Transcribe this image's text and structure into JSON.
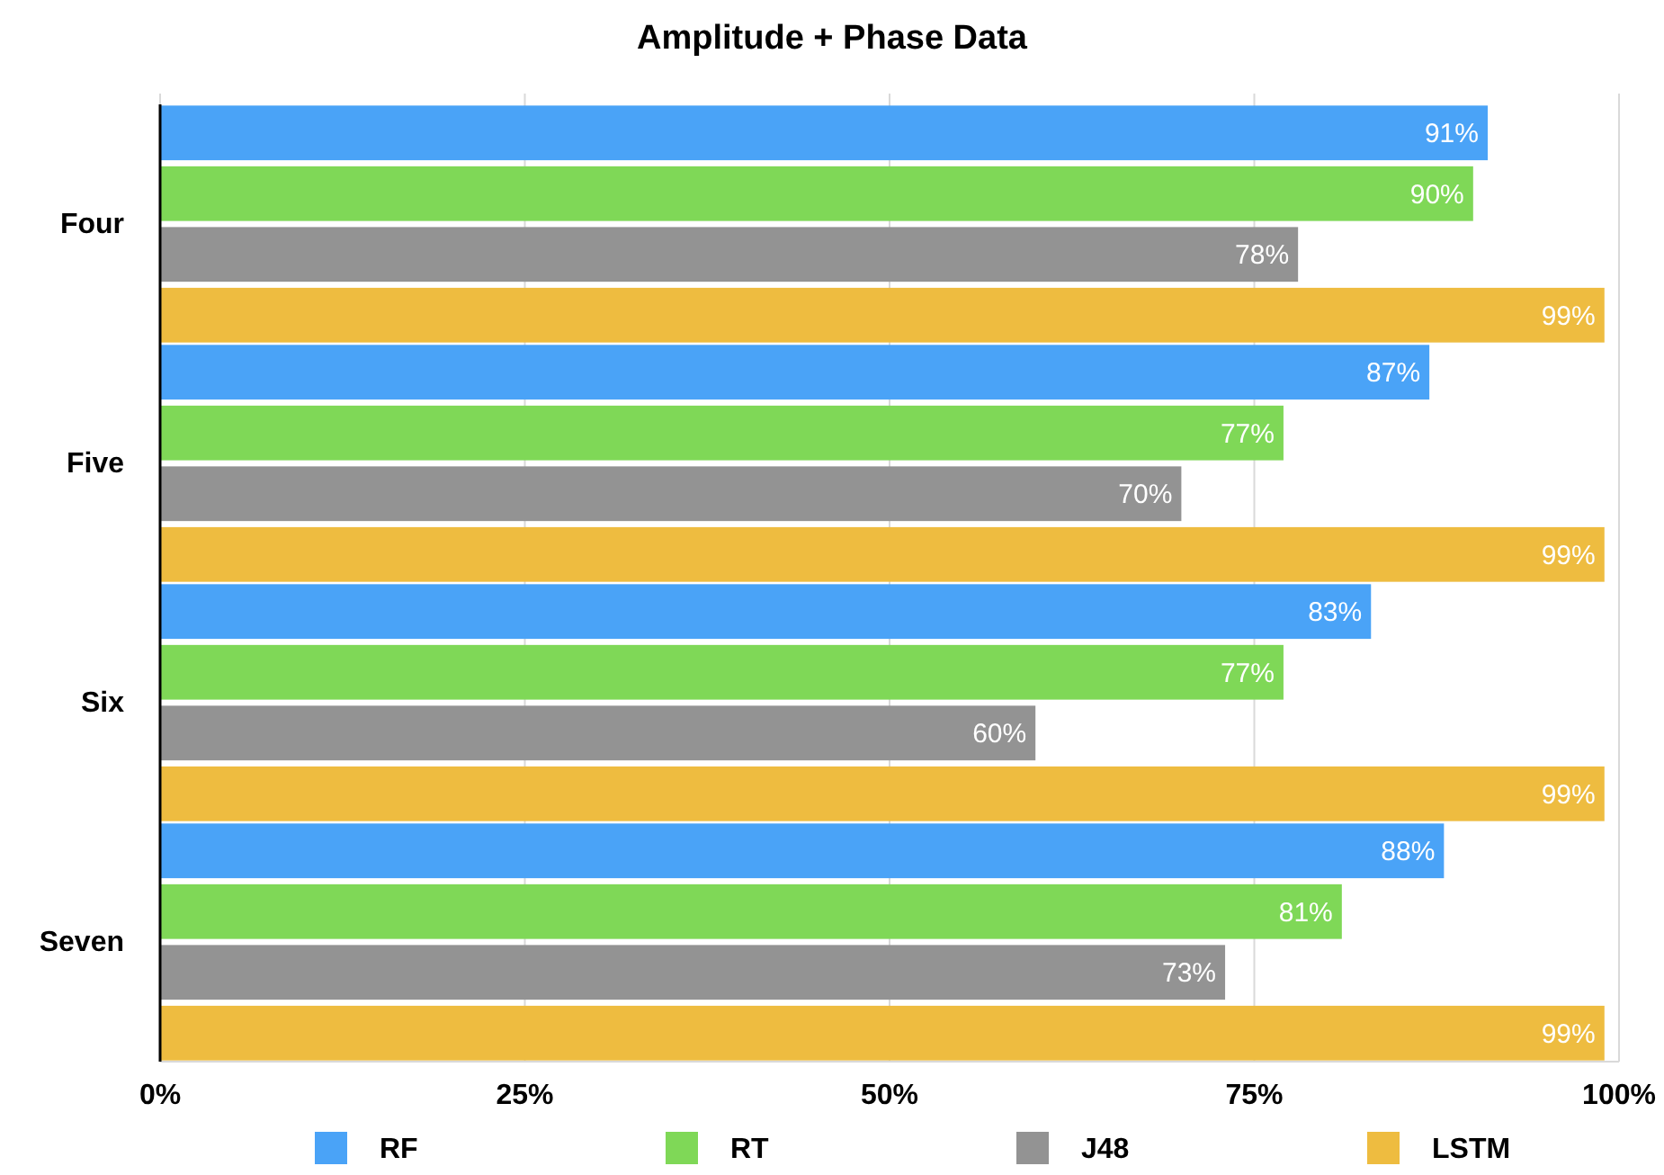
{
  "chart_data": {
    "type": "bar",
    "orientation": "horizontal",
    "title": "Amplitude + Phase Data",
    "categories": [
      "Four",
      "Five",
      "Six",
      "Seven"
    ],
    "series": [
      {
        "name": "RF",
        "color": "#4aa3f7",
        "values": [
          91,
          87,
          83,
          88
        ],
        "value_labels": [
          "91%",
          "87%",
          "83%",
          "88%"
        ]
      },
      {
        "name": "RT",
        "color": "#7fd857",
        "values": [
          90,
          77,
          77,
          81
        ],
        "value_labels": [
          "90%",
          "77%",
          "77%",
          "81%"
        ]
      },
      {
        "name": "J48",
        "color": "#939393",
        "values": [
          78,
          70,
          60,
          73
        ],
        "value_labels": [
          "78%",
          "70%",
          "60%",
          "73%"
        ]
      },
      {
        "name": "LSTM",
        "color": "#eebc40",
        "values": [
          99,
          99,
          99,
          99
        ],
        "value_labels": [
          "99%",
          "99%",
          "99%",
          "99%"
        ]
      }
    ],
    "xlim": [
      0,
      100
    ],
    "xticks": [
      {
        "value": 0,
        "label": "0%"
      },
      {
        "value": 25,
        "label": "25%"
      },
      {
        "value": 50,
        "label": "50%"
      },
      {
        "value": 75,
        "label": "75%"
      },
      {
        "value": 100,
        "label": "100%"
      }
    ],
    "grid": "x",
    "legend": "bottom"
  }
}
